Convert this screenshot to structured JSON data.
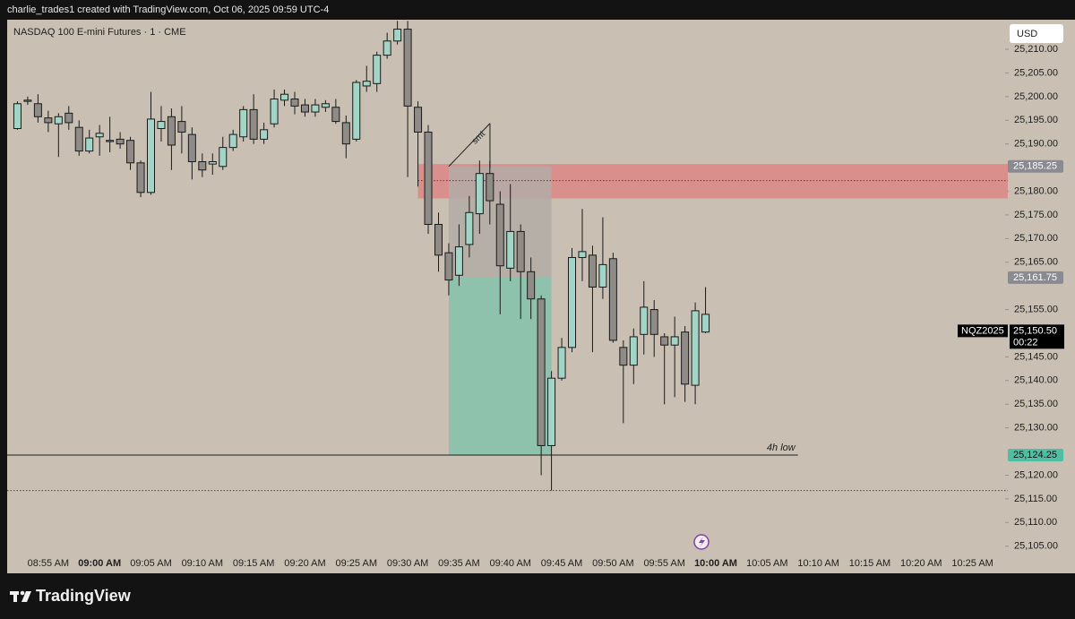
{
  "header": "charlie_trades1 created with TradingView.com, Oct 06, 2025 09:59 UTC-4",
  "footer": {
    "brand": "TradingView"
  },
  "currency": "USD",
  "chart_data": {
    "type": "candlestick",
    "title": "NASDAQ 100 E-mini Futures · 1 · CME",
    "x": [
      "08:52 AM",
      "08:53 AM",
      "08:54 AM",
      "08:55 AM",
      "08:56 AM",
      "08:57 AM",
      "08:58 AM",
      "08:59 AM",
      "09:00 AM",
      "09:01 AM",
      "09:02 AM",
      "09:03 AM",
      "09:04 AM",
      "09:05 AM",
      "09:06 AM",
      "09:07 AM",
      "09:08 AM",
      "09:09 AM",
      "09:10 AM",
      "09:11 AM",
      "09:12 AM",
      "09:13 AM",
      "09:14 AM",
      "09:15 AM",
      "09:16 AM",
      "09:17 AM",
      "09:18 AM",
      "09:19 AM",
      "09:20 AM",
      "09:21 AM",
      "09:22 AM",
      "09:23 AM",
      "09:24 AM",
      "09:25 AM",
      "09:26 AM",
      "09:27 AM",
      "09:28 AM",
      "09:29 AM",
      "09:30 AM",
      "09:31 AM",
      "09:32 AM",
      "09:33 AM",
      "09:34 AM",
      "09:35 AM",
      "09:36 AM",
      "09:37 AM",
      "09:38 AM",
      "09:39 AM",
      "09:40 AM",
      "09:41 AM",
      "09:42 AM",
      "09:43 AM",
      "09:44 AM",
      "09:45 AM",
      "09:46 AM",
      "09:47 AM",
      "09:48 AM",
      "09:49 AM",
      "09:50 AM",
      "09:51 AM",
      "09:52 AM",
      "09:53 AM",
      "09:54 AM",
      "09:55 AM",
      "09:56 AM",
      "09:57 AM",
      "09:58 AM",
      "09:59 AM"
    ],
    "open": [
      25193.25,
      25199,
      25198.5,
      25195.5,
      25194.25,
      25196.5,
      25193.5,
      25188.5,
      25191.5,
      25190.5,
      25191,
      25190.75,
      25186,
      25179.75,
      25193.25,
      25195.75,
      25194.75,
      25192,
      25186.25,
      25185.75,
      25185.25,
      25189.25,
      25191.5,
      25197.25,
      25191,
      25194.25,
      25199.25,
      25199.5,
      25198.25,
      25196.75,
      25197.75,
      25197.75,
      25194.5,
      25191,
      25202.25,
      25202.75,
      25208.75,
      25211.75,
      25214.25,
      25197.75,
      25192.5,
      25173,
      25167,
      25162.25,
      25168.75,
      25175.25,
      25183.75,
      25177.25,
      25163.75,
      25171.5,
      25163,
      25157.25,
      25126.25,
      25140.5,
      25147,
      25166,
      25166.5,
      25159.75,
      25165.75,
      25147,
      25143.25,
      25149.75,
      25155,
      25149.25,
      25147.5,
      25150.25,
      25139,
      25150.25
    ],
    "high": [
      25199,
      25200,
      25200.5,
      25197,
      25196.5,
      25198,
      25195,
      25193,
      25194,
      25195.75,
      25192.5,
      25191.5,
      25186.5,
      25201,
      25198,
      25197.5,
      25198,
      25193.5,
      25188,
      25188,
      25191.5,
      25193,
      25198,
      25200.5,
      25194.5,
      25201.5,
      25201.5,
      25201,
      25199.5,
      25199.5,
      25199.25,
      25199.5,
      25196,
      25203.5,
      25206.5,
      25209.5,
      25213.5,
      25216,
      25216,
      25199,
      25194,
      25175.5,
      25169,
      25173,
      25179,
      25186.5,
      25186.5,
      25180,
      25181.5,
      25173,
      25166,
      25158,
      25142,
      25149,
      25168,
      25176.25,
      25168.5,
      25174.5,
      25167,
      25148.5,
      25151,
      25161,
      25157,
      25150,
      25153.5,
      25151.5,
      25156.5,
      25159.75
    ],
    "low": [
      25193,
      25198.25,
      25194.5,
      25192.5,
      25187.25,
      25193,
      25187.5,
      25188,
      25187.5,
      25188.25,
      25189,
      25184.5,
      25178.75,
      25179.25,
      25190.5,
      25184.5,
      25188,
      25182.5,
      25183,
      25183.5,
      25184.5,
      25188.5,
      25190.5,
      25190,
      25190,
      25193.5,
      25198,
      25196.25,
      25195.75,
      25195.75,
      25196.75,
      25194.25,
      25187,
      25190.5,
      25201,
      25201,
      25208,
      25211,
      25183,
      25181,
      25171,
      25163,
      25158,
      25160,
      25166,
      25171,
      25173,
      25154,
      25161,
      25153,
      25153,
      25120,
      25116.75,
      25140,
      25146,
      25161,
      25146,
      25157.25,
      25148,
      25131,
      25139.25,
      25145.5,
      25145,
      25135,
      25136.5,
      25135.5,
      25135,
      25150
    ],
    "close": [
      25198.5,
      25199.25,
      25195.75,
      25194.5,
      25195.75,
      25194.5,
      25188.5,
      25191.25,
      25192.25,
      25190.75,
      25190,
      25186,
      25179.75,
      25195.25,
      25194.75,
      25189.75,
      25192.5,
      25186.25,
      25184.5,
      25186.25,
      25189.25,
      25192,
      25197.25,
      25191,
      25193,
      25199.5,
      25200.5,
      25198,
      25196.75,
      25198.25,
      25198.5,
      25194.75,
      25190,
      25203,
      25203.25,
      25208.75,
      25211.75,
      25214.25,
      25198,
      25192.5,
      25173,
      25166.5,
      25161.25,
      25168.25,
      25175.5,
      25183.75,
      25178,
      25164.25,
      25171.5,
      25163,
      25157.25,
      25126.25,
      25140.5,
      25147,
      25166,
      25167.25,
      25159.75,
      25164.5,
      25148.5,
      25143.25,
      25149.25,
      25155.5,
      25149.75,
      25147.5,
      25149.25,
      25139.25,
      25154.75,
      25154
    ],
    "up_color": "#a3d5c7",
    "down_color": "#8f8b87",
    "xlim": [
      "08:51 AM",
      "10:28 AM"
    ],
    "xticks": [
      "08:55 AM",
      "09:00 AM",
      "09:05 AM",
      "09:10 AM",
      "09:15 AM",
      "09:20 AM",
      "09:25 AM",
      "09:30 AM",
      "09:35 AM",
      "09:40 AM",
      "09:45 AM",
      "09:50 AM",
      "09:55 AM",
      "10:00 AM",
      "10:05 AM",
      "10:10 AM",
      "10:15 AM",
      "10:20 AM",
      "10:25 AM"
    ],
    "ylim": [
      25104,
      25216.25
    ],
    "yticks": [
      {
        "value": 25105,
        "label": "25,105.00"
      },
      {
        "value": 25110,
        "label": "25,110.00"
      },
      {
        "value": 25115,
        "label": "25,115.00"
      },
      {
        "value": 25120,
        "label": "25,120.00"
      },
      {
        "value": 25130,
        "label": "25,130.00"
      },
      {
        "value": 25135,
        "label": "25,135.00"
      },
      {
        "value": 25140,
        "label": "25,140.00"
      },
      {
        "value": 25145,
        "label": "25,145.00"
      },
      {
        "value": 25155,
        "label": "25,155.00"
      },
      {
        "value": 25165,
        "label": "25,165.00"
      },
      {
        "value": 25170,
        "label": "25,170.00"
      },
      {
        "value": 25175,
        "label": "25,175.00"
      },
      {
        "value": 25180,
        "label": "25,180.00"
      },
      {
        "value": 25190,
        "label": "25,190.00"
      },
      {
        "value": 25195,
        "label": "25,195.00"
      },
      {
        "value": 25200,
        "label": "25,200.00"
      },
      {
        "value": 25205,
        "label": "25,205.00"
      },
      {
        "value": 25210,
        "label": "25,210.00"
      }
    ],
    "zone": {
      "high": 25185.75,
      "low": 25178.5,
      "start": "09:31 AM",
      "color": "#d9908c"
    },
    "position": {
      "start": "09:34 AM",
      "end": "09:44 AM",
      "stop": {
        "value": 25185.25,
        "label": "25,185.25"
      },
      "entry": {
        "value": 25161.75,
        "label": "25,161.75"
      },
      "target": {
        "value": 25124.25,
        "label": "25,124.25"
      },
      "risk_color": "#b2aba6",
      "reward_color": "#8fc2ad"
    },
    "level": {
      "text": "4h low",
      "value": 25124.25,
      "end": "10:08 AM"
    },
    "dotted_lines": [
      25182.25,
      25116.75
    ],
    "smt": {
      "text": "smt"
    },
    "last": {
      "symbol": "NQZ2025",
      "price": {
        "value": 25150.5,
        "label": "25,150.50"
      },
      "countdown": "00:22"
    }
  }
}
